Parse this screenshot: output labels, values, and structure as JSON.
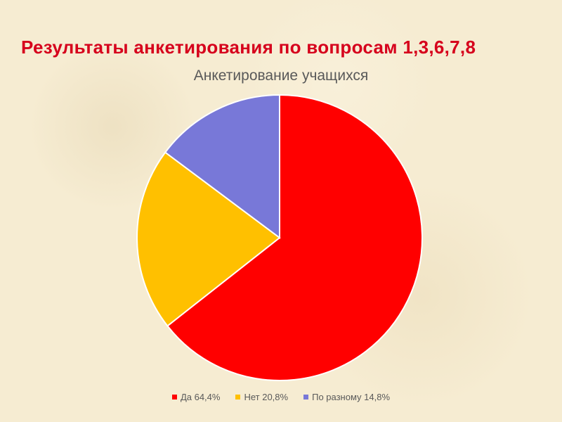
{
  "slide": {
    "title": "Результаты анкетирования по вопросам 1,3,6,7,8",
    "title_color": "#d6001c"
  },
  "chart_data": {
    "type": "pie",
    "title": "Анкетирование учащихся",
    "legend_position": "bottom",
    "start": "12 o'clock, clockwise",
    "slices": [
      {
        "label": "Да",
        "value": 64.4,
        "legend_text": "Да 64,4%",
        "color": "#ff0000"
      },
      {
        "label": "Нет",
        "value": 20.8,
        "legend_text": "Нет 20,8%",
        "color": "#ffc000"
      },
      {
        "label": "По разному",
        "value": 14.8,
        "legend_text": "По разному 14,8%",
        "color": "#7878d8"
      }
    ]
  }
}
